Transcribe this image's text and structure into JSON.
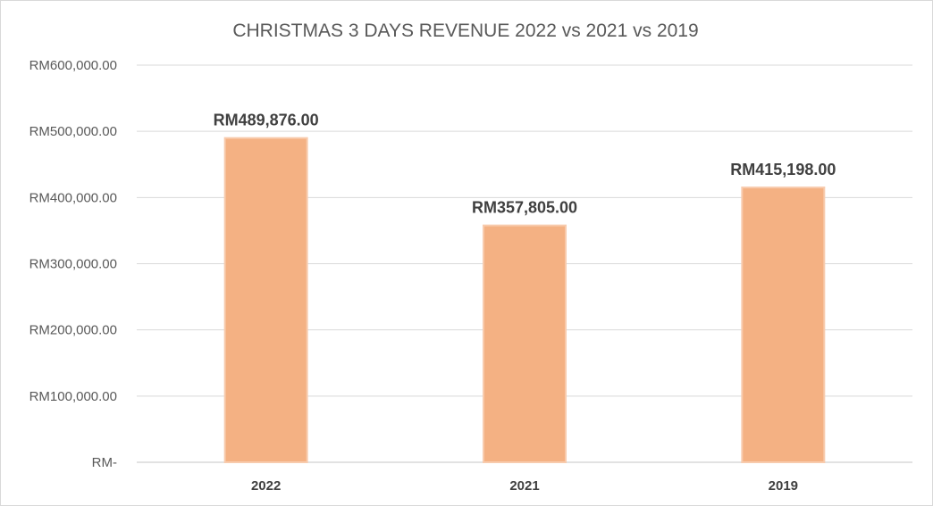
{
  "chart_data": {
    "type": "bar",
    "title": "CHRISTMAS 3 DAYS REVENUE 2022 vs 2021 vs 2019",
    "xlabel": "",
    "ylabel": "",
    "categories": [
      "2022",
      "2021",
      "2019"
    ],
    "values": [
      489876,
      357805,
      415198
    ],
    "data_labels": [
      "RM489,876.00",
      "RM357,805.00",
      "RM415,198.00"
    ],
    "ylim": [
      0,
      600000
    ],
    "yticks": [
      0,
      100000,
      200000,
      300000,
      400000,
      500000,
      600000
    ],
    "ytick_labels": [
      "RM-",
      "RM100,000.00",
      "RM200,000.00",
      "RM300,000.00",
      "RM400,000.00",
      "RM500,000.00",
      "RM600,000.00"
    ],
    "grid": true,
    "legend": "none",
    "colors": {
      "bar_fill": "#f4b183",
      "bar_stroke": "#f8cbad",
      "text": "#595959"
    }
  }
}
